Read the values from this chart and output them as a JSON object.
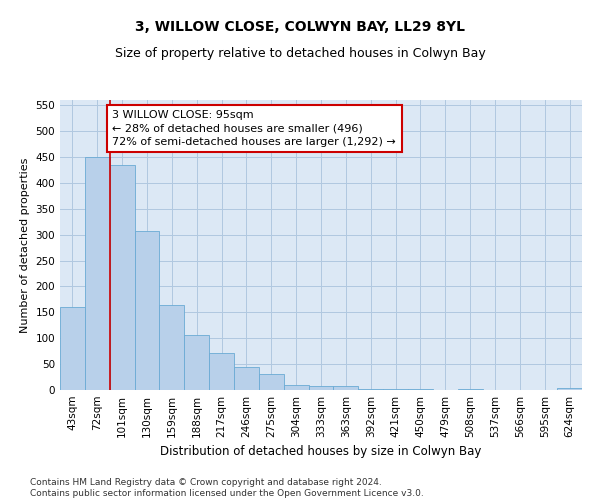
{
  "title": "3, WILLOW CLOSE, COLWYN BAY, LL29 8YL",
  "subtitle": "Size of property relative to detached houses in Colwyn Bay",
  "xlabel": "Distribution of detached houses by size in Colwyn Bay",
  "ylabel": "Number of detached properties",
  "categories": [
    "43sqm",
    "72sqm",
    "101sqm",
    "130sqm",
    "159sqm",
    "188sqm",
    "217sqm",
    "246sqm",
    "275sqm",
    "304sqm",
    "333sqm",
    "363sqm",
    "392sqm",
    "421sqm",
    "450sqm",
    "479sqm",
    "508sqm",
    "537sqm",
    "566sqm",
    "595sqm",
    "624sqm"
  ],
  "values": [
    161,
    450,
    435,
    307,
    165,
    106,
    72,
    45,
    30,
    10,
    7,
    7,
    1,
    1,
    1,
    0,
    1,
    0,
    0,
    0,
    3
  ],
  "bar_color": "#b8d0ea",
  "bar_edge_color": "#6aaad4",
  "background_color": "#ffffff",
  "plot_bg_color": "#dce8f5",
  "grid_color": "#b0c8e0",
  "annotation_line1": "3 WILLOW CLOSE: 95sqm",
  "annotation_line2": "← 28% of detached houses are smaller (496)",
  "annotation_line3": "72% of semi-detached houses are larger (1,292) →",
  "annotation_box_color": "#ffffff",
  "annotation_box_edge_color": "#cc0000",
  "vline_x": 1.5,
  "vline_color": "#cc0000",
  "ylim": [
    0,
    560
  ],
  "yticks": [
    0,
    50,
    100,
    150,
    200,
    250,
    300,
    350,
    400,
    450,
    500,
    550
  ],
  "footer": "Contains HM Land Registry data © Crown copyright and database right 2024.\nContains public sector information licensed under the Open Government Licence v3.0.",
  "title_fontsize": 10,
  "subtitle_fontsize": 9,
  "xlabel_fontsize": 8.5,
  "ylabel_fontsize": 8,
  "tick_fontsize": 7.5,
  "annotation_fontsize": 8,
  "footer_fontsize": 6.5
}
